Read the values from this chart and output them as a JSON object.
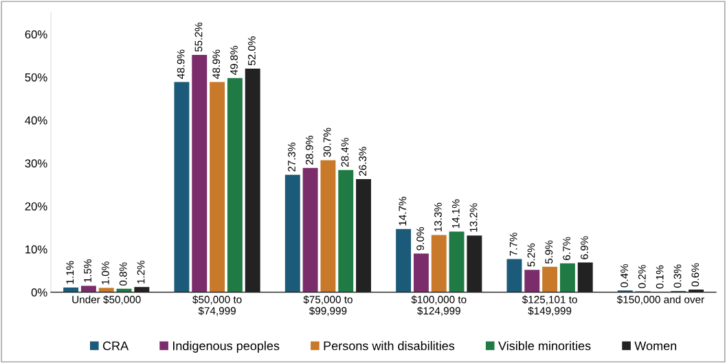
{
  "chart_data": {
    "type": "bar",
    "categories": [
      "Under $50,000",
      "$50,000 to\n$74,999",
      "$75,000 to\n$99,999",
      "$100,000 to\n$124,999",
      "$125,101 to\n$149,999",
      "$150,000 and over"
    ],
    "series": [
      {
        "name": "CRA",
        "color": "#1b5a78",
        "values": [
          1.1,
          48.9,
          27.3,
          14.7,
          7.7,
          0.4
        ],
        "value_labels": [
          "1.1%",
          "48.9%",
          "27.3%",
          "14.7%",
          "7.7%",
          "0.4%"
        ]
      },
      {
        "name": "Indigenous peoples",
        "color": "#7b2d6b",
        "values": [
          1.5,
          55.2,
          28.9,
          9.0,
          5.2,
          0.2
        ],
        "value_labels": [
          "1.5%",
          "55.2%",
          "28.9%",
          "9.0%",
          "5.2%",
          "0.2%"
        ]
      },
      {
        "name": "Persons with disabilities",
        "color": "#c8792a",
        "values": [
          1.0,
          48.9,
          30.7,
          13.3,
          5.9,
          0.1
        ],
        "value_labels": [
          "1.0%",
          "48.9%",
          "30.7%",
          "13.3%",
          "5.9%",
          "0.1%"
        ]
      },
      {
        "name": "Visible minorities",
        "color": "#1f7a43",
        "values": [
          0.8,
          49.8,
          28.4,
          14.1,
          6.7,
          0.3
        ],
        "value_labels": [
          "0.8%",
          "49.8%",
          "28.4%",
          "14.1%",
          "6.7%",
          "0.3%"
        ]
      },
      {
        "name": "Women",
        "color": "#222222",
        "values": [
          1.2,
          52.0,
          26.3,
          13.2,
          6.9,
          0.6
        ],
        "value_labels": [
          "1.2%",
          "52.0%",
          "26.3%",
          "13.2%",
          "6.9%",
          "0.6%"
        ]
      }
    ],
    "ylim": [
      0,
      65
    ],
    "yticks": [
      {
        "value": 0,
        "label": "0%"
      },
      {
        "value": 10,
        "label": "10%"
      },
      {
        "value": 20,
        "label": "20%"
      },
      {
        "value": 30,
        "label": "30%"
      },
      {
        "value": 40,
        "label": "40%"
      },
      {
        "value": 50,
        "label": "50%"
      },
      {
        "value": 60,
        "label": "60%"
      }
    ],
    "grid": false,
    "legend": "bottom"
  }
}
